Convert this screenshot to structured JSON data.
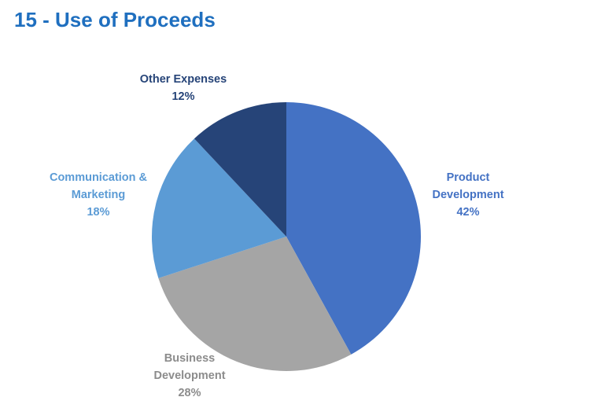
{
  "chart_data": {
    "type": "pie",
    "title": "15 - Use of Proceeds",
    "categories": [
      "Product Development",
      "Business Development",
      "Communication & Marketing",
      "Other Expenses"
    ],
    "values": [
      42,
      28,
      18,
      12
    ],
    "value_labels": [
      "42%",
      "28%",
      "18%",
      "12%"
    ],
    "colors": [
      "#4472c4",
      "#a5a5a5",
      "#5b9bd5",
      "#264478"
    ]
  }
}
